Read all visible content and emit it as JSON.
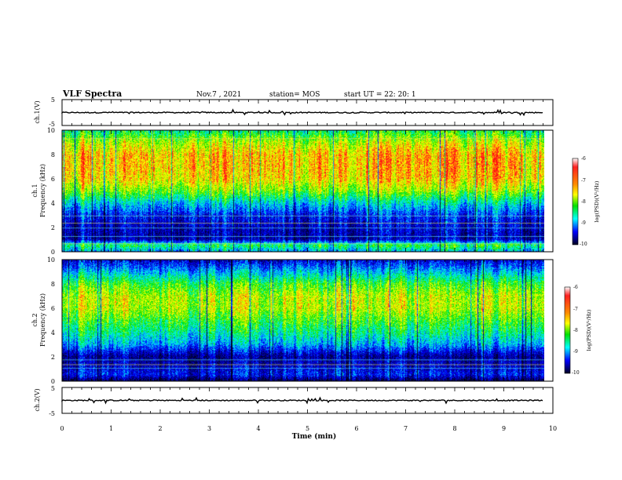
{
  "header": {
    "title": "VLF Spectra",
    "date": "Nov.7 , 2021",
    "station": "station= MOS",
    "start": "start UT = 22: 20: 1"
  },
  "chart_data": [
    {
      "type": "line",
      "name": "ch1-waveform",
      "ylabel": "ch.1(V)",
      "ylim": [
        -5,
        5
      ],
      "yticks": [
        "5",
        "-5"
      ],
      "baseline_y": 0
    },
    {
      "type": "heatmap",
      "name": "ch1-spectrogram",
      "ylabel_line1": "ch.1",
      "ylabel_line2": "Frequency (kHz)",
      "ylim": [
        0,
        10
      ],
      "yticks": [
        "0",
        "2",
        "4",
        "6",
        "8",
        "10"
      ],
      "colorbar": {
        "label": "log(PSD)(V²/Hz)",
        "range": [
          -10,
          -6
        ],
        "ticks": [
          "-6",
          "-7",
          "-8",
          "-9",
          "-10"
        ]
      },
      "intensity_profile": {
        "freq_khz": [
          0,
          0.5,
          1,
          2,
          3,
          4,
          5,
          6,
          7,
          8,
          9,
          10
        ],
        "log_psd": [
          -8.5,
          -7.8,
          -9.4,
          -9.3,
          -9.0,
          -8.3,
          -7.4,
          -6.9,
          -6.8,
          -6.8,
          -7.2,
          -7.9
        ]
      }
    },
    {
      "type": "heatmap",
      "name": "ch2-spectrogram",
      "ylabel_line1": "ch.2",
      "ylabel_line2": "Frequency (kHz)",
      "ylim": [
        0,
        10
      ],
      "yticks": [
        "0",
        "2",
        "4",
        "6",
        "8",
        "10"
      ],
      "colorbar": {
        "label": "log(PSD)(V²/Hz)",
        "range": [
          -10,
          -6
        ],
        "ticks": [
          "-6",
          "-7",
          "-8",
          "-9",
          "-10"
        ]
      },
      "intensity_profile": {
        "freq_khz": [
          0,
          0.5,
          1,
          2,
          3,
          4,
          5,
          6,
          7,
          8,
          9,
          10
        ],
        "log_psd": [
          -9.8,
          -9.0,
          -9.2,
          -9.5,
          -8.5,
          -8.0,
          -7.6,
          -7.2,
          -7.2,
          -7.6,
          -8.4,
          -9.2
        ]
      }
    },
    {
      "type": "line",
      "name": "ch2-waveform",
      "ylabel": "ch.2(V)",
      "ylim": [
        -5,
        5
      ],
      "yticks": [
        "5",
        "-5"
      ],
      "baseline_y": 0
    }
  ],
  "x_axis": {
    "label": "Time (min)",
    "xlim": [
      0,
      10
    ],
    "ticks": [
      "0",
      "1",
      "2",
      "3",
      "4",
      "5",
      "6",
      "7",
      "8",
      "9",
      "10"
    ],
    "data_end_min": 9.8
  }
}
